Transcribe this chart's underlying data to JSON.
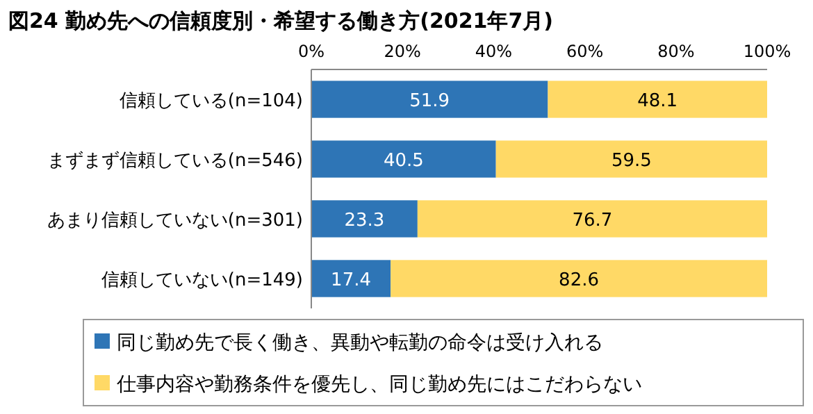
{
  "chart_data": {
    "type": "bar",
    "orientation": "horizontal",
    "stacked": true,
    "title": "図24 勤め先への信頼度別・希望する働き方(2021年7月)",
    "categories": [
      "信頼している(n=104)",
      "まずまず信頼している(n=546)",
      "あまり信頼していない(n=301)",
      "信頼していない(n=149)"
    ],
    "series": [
      {
        "name": "同じ勤め先で長く働き、異動や転勤の命令は受け入れる",
        "color": "#2e75b6",
        "values": [
          51.9,
          40.5,
          23.3,
          17.4
        ]
      },
      {
        "name": "仕事内容や勤務条件を優先し、同じ勤め先にはこだわらない",
        "color": "#ffd966",
        "values": [
          48.1,
          59.5,
          76.7,
          82.6
        ]
      }
    ],
    "xlim": [
      0,
      100
    ],
    "xticks": [
      {
        "value": 0,
        "label": "0%"
      },
      {
        "value": 20,
        "label": "20%"
      },
      {
        "value": 40,
        "label": "40%"
      },
      {
        "value": 60,
        "label": "60%"
      },
      {
        "value": 80,
        "label": "80%"
      },
      {
        "value": 100,
        "label": "100%"
      }
    ],
    "data_labels": true,
    "legend": "bottom",
    "grid": false
  }
}
